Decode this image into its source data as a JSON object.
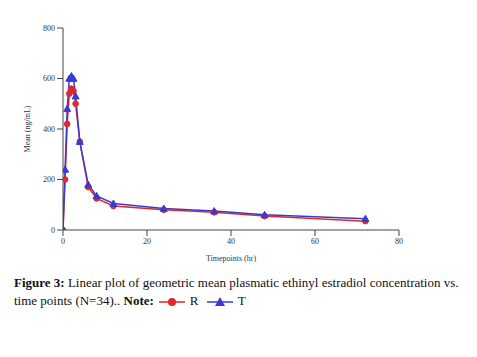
{
  "chart_data": {
    "type": "line",
    "title": "Figure 3: Linear plot of geometric mean plasmatic ethinyl estradiol concentration vs. time points (N=34)..",
    "note": "Note:",
    "x_label": "Timepoints (hr)",
    "y_label": "Mean (ng/mL)",
    "x": [
      0,
      0.5,
      1,
      1.5,
      2,
      2.5,
      3,
      4,
      6,
      8,
      12,
      24,
      36,
      48,
      72
    ],
    "series": [
      {
        "name": "R",
        "color": "#e02828",
        "marker": "circle",
        "values": [
          0,
          200,
          420,
          540,
          560,
          550,
          500,
          350,
          170,
          125,
          95,
          80,
          70,
          55,
          35
        ]
      },
      {
        "name": "T",
        "color": "#3a3ad0",
        "marker": "triangle",
        "values": [
          0,
          240,
          480,
          600,
          610,
          600,
          530,
          350,
          180,
          135,
          105,
          85,
          75,
          60,
          45
        ]
      }
    ],
    "xlim": [
      0,
      80
    ],
    "xticks": [
      0,
      20,
      40,
      60,
      80
    ],
    "ylim": [
      0,
      800
    ],
    "yticks": [
      0,
      200,
      400,
      600,
      800
    ],
    "grid": false,
    "legend": "bottom"
  }
}
